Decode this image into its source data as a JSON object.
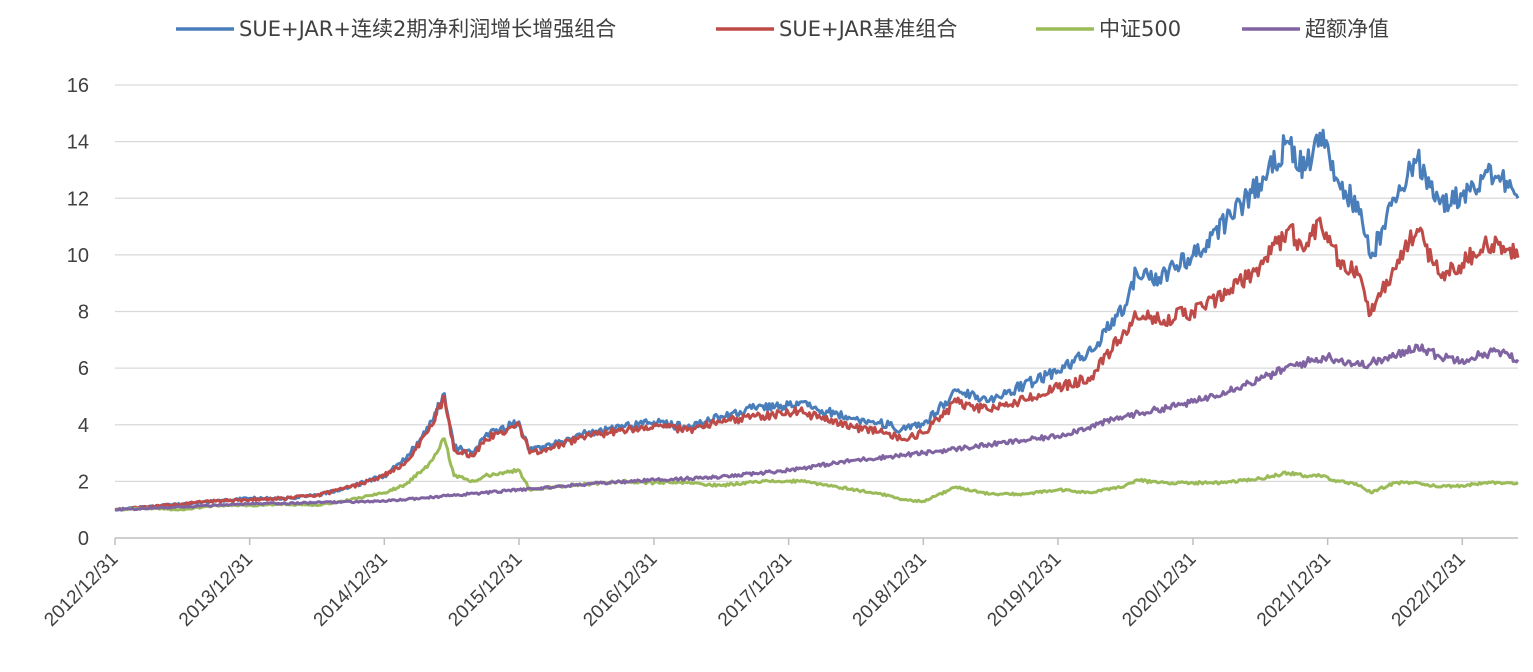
{
  "chart_data": {
    "type": "line",
    "title": "",
    "xlabel": "",
    "ylabel": "",
    "ylim": [
      0,
      16
    ],
    "yticks": [
      0,
      2,
      4,
      6,
      8,
      10,
      12,
      14,
      16
    ],
    "xlim": [
      "2012/12/31",
      "2023/05/31"
    ],
    "xticks": [
      "2012/12/31",
      "2013/12/31",
      "2014/12/31",
      "2015/12/31",
      "2016/12/31",
      "2017/12/31",
      "2018/12/31",
      "2019/12/31",
      "2020/12/31",
      "2021/12/31",
      "2022/12/31"
    ],
    "grid": "horizontal",
    "legend": "top",
    "series": [
      {
        "name": "SUE+JAR+连续2期净利润增长增强组合",
        "color": "#4a7ebb",
        "x": [
          "2012/12/31",
          "2013/03/31",
          "2013/06/30",
          "2013/09/30",
          "2013/12/31",
          "2014/03/31",
          "2014/06/30",
          "2014/09/30",
          "2014/12/31",
          "2015/02/28",
          "2015/04/30",
          "2015/06/12",
          "2015/07/08",
          "2015/08/31",
          "2015/09/30",
          "2015/12/31",
          "2016/01/29",
          "2016/03/31",
          "2016/06/30",
          "2016/09/30",
          "2016/12/31",
          "2017/03/31",
          "2017/06/30",
          "2017/09/30",
          "2017/12/31",
          "2018/01/31",
          "2018/03/31",
          "2018/06/30",
          "2018/09/30",
          "2018/10/31",
          "2018/12/31",
          "2019/03/31",
          "2019/06/30",
          "2019/09/30",
          "2019/12/31",
          "2020/03/31",
          "2020/06/30",
          "2020/07/31",
          "2020/09/30",
          "2020/12/31",
          "2021/03/31",
          "2021/06/30",
          "2021/09/15",
          "2021/10/31",
          "2021/12/10",
          "2022/01/31",
          "2022/03/31",
          "2022/04/27",
          "2022/06/30",
          "2022/08/31",
          "2022/10/31",
          "2022/12/31",
          "2023/02/28",
          "2023/04/30",
          "2023/05/31"
        ],
        "values": [
          1.0,
          1.1,
          1.2,
          1.3,
          1.4,
          1.4,
          1.5,
          1.8,
          2.2,
          2.8,
          3.9,
          5.1,
          3.2,
          3.0,
          3.6,
          4.1,
          3.1,
          3.3,
          3.7,
          3.9,
          4.1,
          3.9,
          4.3,
          4.6,
          4.7,
          4.8,
          4.5,
          4.2,
          4.0,
          3.8,
          4.0,
          5.2,
          4.9,
          5.4,
          5.9,
          6.6,
          8.2,
          9.4,
          9.2,
          10.0,
          11.2,
          12.5,
          14.0,
          13.0,
          14.3,
          12.5,
          11.6,
          9.9,
          12.0,
          13.4,
          11.8,
          12.1,
          12.8,
          12.6,
          12.0
        ]
      },
      {
        "name": "SUE+JAR基准组合",
        "color": "#be4b48",
        "x": [
          "2012/12/31",
          "2013/03/31",
          "2013/06/30",
          "2013/09/30",
          "2013/12/31",
          "2014/03/31",
          "2014/06/30",
          "2014/09/30",
          "2014/12/31",
          "2015/02/28",
          "2015/04/30",
          "2015/06/12",
          "2015/07/08",
          "2015/08/31",
          "2015/09/30",
          "2015/12/31",
          "2016/01/29",
          "2016/03/31",
          "2016/06/30",
          "2016/09/30",
          "2016/12/31",
          "2017/03/31",
          "2017/06/30",
          "2017/09/30",
          "2017/12/31",
          "2018/01/31",
          "2018/03/31",
          "2018/06/30",
          "2018/09/30",
          "2018/10/31",
          "2018/12/31",
          "2019/03/31",
          "2019/06/30",
          "2019/09/30",
          "2019/12/31",
          "2020/03/31",
          "2020/06/30",
          "2020/07/31",
          "2020/09/30",
          "2020/12/31",
          "2021/03/31",
          "2021/06/30",
          "2021/09/15",
          "2021/10/31",
          "2021/12/10",
          "2022/01/31",
          "2022/03/31",
          "2022/04/27",
          "2022/06/30",
          "2022/08/31",
          "2022/10/31",
          "2022/12/31",
          "2023/02/28",
          "2023/04/30",
          "2023/05/31"
        ],
        "values": [
          1.0,
          1.1,
          1.2,
          1.3,
          1.35,
          1.4,
          1.5,
          1.8,
          2.2,
          2.7,
          3.8,
          5.0,
          3.1,
          2.9,
          3.5,
          4.0,
          3.0,
          3.2,
          3.6,
          3.8,
          4.0,
          3.8,
          4.1,
          4.3,
          4.4,
          4.5,
          4.2,
          3.9,
          3.7,
          3.5,
          3.7,
          4.8,
          4.5,
          4.9,
          5.3,
          5.7,
          7.3,
          7.8,
          7.7,
          8.0,
          8.6,
          9.6,
          10.9,
          10.2,
          11.3,
          9.8,
          9.2,
          7.9,
          9.5,
          10.9,
          9.3,
          9.7,
          10.4,
          10.2,
          9.9
        ]
      },
      {
        "name": "中证500",
        "color": "#9bbb59",
        "x": [
          "2012/12/31",
          "2013/03/31",
          "2013/06/30",
          "2013/09/30",
          "2013/12/31",
          "2014/03/31",
          "2014/06/30",
          "2014/09/30",
          "2014/12/31",
          "2015/02/28",
          "2015/04/30",
          "2015/06/12",
          "2015/07/08",
          "2015/08/31",
          "2015/09/30",
          "2015/12/31",
          "2016/01/29",
          "2016/03/31",
          "2016/06/30",
          "2016/09/30",
          "2016/12/31",
          "2017/03/31",
          "2017/06/30",
          "2017/09/30",
          "2017/12/31",
          "2018/01/31",
          "2018/03/31",
          "2018/06/30",
          "2018/09/30",
          "2018/10/31",
          "2018/12/31",
          "2019/03/31",
          "2019/06/30",
          "2019/09/30",
          "2019/12/31",
          "2020/03/31",
          "2020/06/30",
          "2020/07/31",
          "2020/09/30",
          "2020/12/31",
          "2021/03/31",
          "2021/06/30",
          "2021/09/15",
          "2021/10/31",
          "2021/12/10",
          "2022/01/31",
          "2022/03/31",
          "2022/04/27",
          "2022/06/30",
          "2022/08/31",
          "2022/10/31",
          "2022/12/31",
          "2023/02/28",
          "2023/04/30",
          "2023/05/31"
        ],
        "values": [
          1.0,
          1.05,
          1.0,
          1.15,
          1.15,
          1.2,
          1.15,
          1.35,
          1.6,
          1.9,
          2.6,
          3.5,
          2.2,
          2.0,
          2.2,
          2.4,
          1.7,
          1.8,
          1.9,
          2.0,
          1.95,
          1.95,
          1.85,
          2.0,
          2.0,
          2.0,
          1.9,
          1.7,
          1.5,
          1.35,
          1.3,
          1.8,
          1.55,
          1.55,
          1.7,
          1.6,
          1.85,
          2.05,
          1.95,
          1.95,
          1.95,
          2.1,
          2.3,
          2.2,
          2.2,
          2.0,
          1.85,
          1.6,
          1.95,
          1.95,
          1.8,
          1.85,
          1.95,
          1.95,
          1.9
        ]
      },
      {
        "name": "超额净值",
        "color": "#8064a2",
        "x": [
          "2012/12/31",
          "2013/06/30",
          "2013/12/31",
          "2014/06/30",
          "2014/12/31",
          "2015/06/30",
          "2015/12/31",
          "2016/06/30",
          "2016/12/31",
          "2017/06/30",
          "2017/12/31",
          "2018/06/30",
          "2018/12/31",
          "2019/06/30",
          "2019/12/31",
          "2020/06/30",
          "2020/12/31",
          "2021/06/30",
          "2021/09/30",
          "2021/12/31",
          "2022/03/31",
          "2022/06/30",
          "2022/08/31",
          "2022/10/31",
          "2022/12/31",
          "2023/03/31",
          "2023/05/31"
        ],
        "values": [
          1.0,
          1.1,
          1.2,
          1.25,
          1.3,
          1.5,
          1.7,
          1.9,
          2.05,
          2.15,
          2.4,
          2.75,
          3.0,
          3.3,
          3.6,
          4.3,
          4.8,
          5.6,
          6.1,
          6.4,
          6.1,
          6.4,
          6.8,
          6.4,
          6.3,
          6.6,
          6.3
        ]
      }
    ]
  }
}
